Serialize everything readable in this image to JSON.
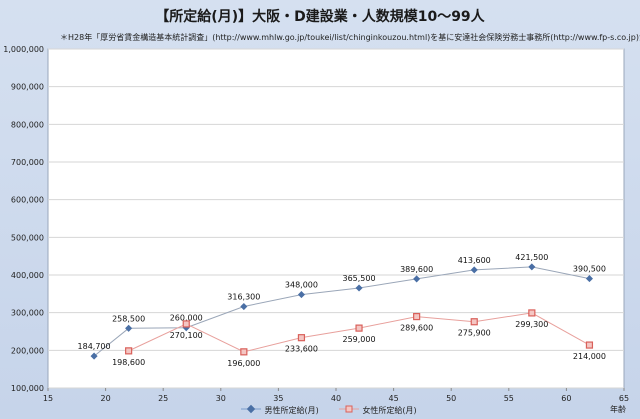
{
  "title": "【所定給(月)】大阪・D建設業・人数規模10～99人",
  "note": "＊H28年「厚労省賃金構造基本統計調査」(http://www.mhlw.go.jp/toukei/list/chinginkouzou.html)を基に安達社会保険労務士事務所(http://www.fp-s.co.jp)が作成",
  "chart_data": {
    "type": "line",
    "title": "【所定給(月)】大阪・D建設業・人数規模10～99人",
    "xlabel": "年齢",
    "ylabel": "",
    "xlim": [
      15,
      65
    ],
    "ylim": [
      100000,
      1000000
    ],
    "x_ticks": [
      "15",
      "20",
      "25",
      "30",
      "35",
      "40",
      "45",
      "50",
      "55",
      "60",
      "65"
    ],
    "y_ticks": [
      "1,000,000",
      "900,000",
      "800,000",
      "700,000",
      "600,000",
      "500,000",
      "400,000",
      "300,000",
      "200,000",
      "100,000"
    ],
    "grid": true,
    "legend_position": "bottom",
    "series": [
      {
        "name": "男性所定給(月)",
        "color": "#4a6fa5",
        "marker": "diamond",
        "x": [
          19,
          22,
          27,
          32,
          37,
          42,
          47,
          52,
          57,
          62
        ],
        "values": [
          184700,
          258500,
          260000,
          316300,
          348000,
          365500,
          389600,
          413600,
          421500,
          390500
        ],
        "labels": [
          "184,700",
          "258,500",
          "260,000",
          "316,300",
          "348,000",
          "365,500",
          "389,600",
          "413,600",
          "421,500",
          "390,500"
        ]
      },
      {
        "name": "女性所定給(月)",
        "color": "#d9605a",
        "marker": "square",
        "x": [
          22,
          27,
          32,
          37,
          42,
          47,
          52,
          57,
          62
        ],
        "values": [
          198600,
          270100,
          196000,
          233600,
          259000,
          289600,
          275900,
          299300,
          214000
        ],
        "labels": [
          "198,600",
          "270,100",
          "196,000",
          "233,600",
          "259,000",
          "289,600",
          "275,900",
          "299,300",
          "214,000"
        ]
      }
    ]
  }
}
